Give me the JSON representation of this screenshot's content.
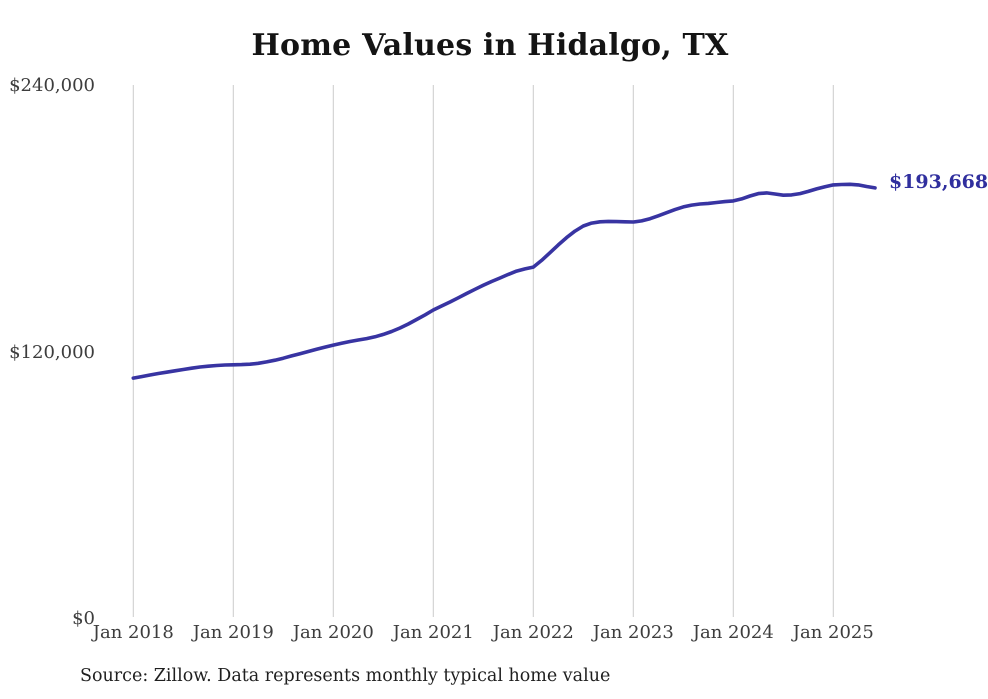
{
  "page": {
    "title": "Home Values in Hidalgo, TX",
    "latest_value_label": "$193,668",
    "source_note": "Source: Zillow. Data represents monthly typical home value"
  },
  "chart_data": {
    "type": "line",
    "title": "Home Values in Hidalgo, TX",
    "xlabel": "",
    "ylabel": "",
    "ylim": [
      0,
      240000
    ],
    "grid": "vertical-only",
    "legend": "none",
    "line_color": "#3834a2",
    "gridline_color": "#cccccc",
    "end_annotation": "$193,668",
    "last_value": 193668,
    "y_ticks": [
      {
        "label": "$0",
        "value": 0
      },
      {
        "label": "$120,000",
        "value": 120000
      },
      {
        "label": "$240,000",
        "value": 240000
      }
    ],
    "x_tick_labels": [
      "Jan 2018",
      "Jan 2019",
      "Jan 2020",
      "Jan 2021",
      "Jan 2022",
      "Jan 2023",
      "Jan 2024",
      "Jan 2025"
    ],
    "series": [
      {
        "name": "Monthly typical home value",
        "color": "#3834a2",
        "x": [
          "2018-01",
          "2018-02",
          "2018-03",
          "2018-04",
          "2018-05",
          "2018-06",
          "2018-07",
          "2018-08",
          "2018-09",
          "2018-10",
          "2018-11",
          "2018-12",
          "2019-01",
          "2019-02",
          "2019-03",
          "2019-04",
          "2019-05",
          "2019-06",
          "2019-07",
          "2019-08",
          "2019-09",
          "2019-10",
          "2019-11",
          "2019-12",
          "2020-01",
          "2020-02",
          "2020-03",
          "2020-04",
          "2020-05",
          "2020-06",
          "2020-07",
          "2020-08",
          "2020-09",
          "2020-10",
          "2020-11",
          "2020-12",
          "2021-01",
          "2021-02",
          "2021-03",
          "2021-04",
          "2021-05",
          "2021-06",
          "2021-07",
          "2021-08",
          "2021-09",
          "2021-10",
          "2021-11",
          "2021-12",
          "2022-01",
          "2022-02",
          "2022-03",
          "2022-04",
          "2022-05",
          "2022-06",
          "2022-07",
          "2022-08",
          "2022-09",
          "2022-10",
          "2022-11",
          "2022-12",
          "2023-01",
          "2023-02",
          "2023-03",
          "2023-04",
          "2023-05",
          "2023-06",
          "2023-07",
          "2023-08",
          "2023-09",
          "2023-10",
          "2023-11",
          "2023-12",
          "2024-01",
          "2024-02",
          "2024-03",
          "2024-04",
          "2024-05",
          "2024-06",
          "2024-07",
          "2024-08",
          "2024-09",
          "2024-10",
          "2024-11",
          "2024-12",
          "2025-01",
          "2025-02",
          "2025-03",
          "2025-04",
          "2025-05",
          "2025-06"
        ],
        "values": [
          108000,
          108700,
          109400,
          110100,
          110700,
          111300,
          111900,
          112500,
          113000,
          113400,
          113700,
          113900,
          114000,
          114100,
          114300,
          114700,
          115300,
          116100,
          117000,
          118000,
          119000,
          120000,
          121000,
          122000,
          122900,
          123700,
          124500,
          125200,
          125800,
          126600,
          127700,
          129000,
          130600,
          132400,
          134400,
          136500,
          138700,
          140500,
          142300,
          144200,
          146100,
          148000,
          149800,
          151500,
          153100,
          154700,
          156200,
          157200,
          158000,
          161000,
          164500,
          168000,
          171300,
          174200,
          176500,
          177800,
          178400,
          178600,
          178500,
          178400,
          178300,
          178800,
          179800,
          181100,
          182500,
          183900,
          185100,
          185900,
          186400,
          186700,
          187100,
          187500,
          187800,
          188700,
          190000,
          191100,
          191400,
          190900,
          190400,
          190500,
          191100,
          192100,
          193200,
          194200,
          195000,
          195200,
          195300,
          195000,
          194300,
          193668
        ]
      }
    ],
    "source": "Source: Zillow. Data represents monthly typical home value"
  }
}
